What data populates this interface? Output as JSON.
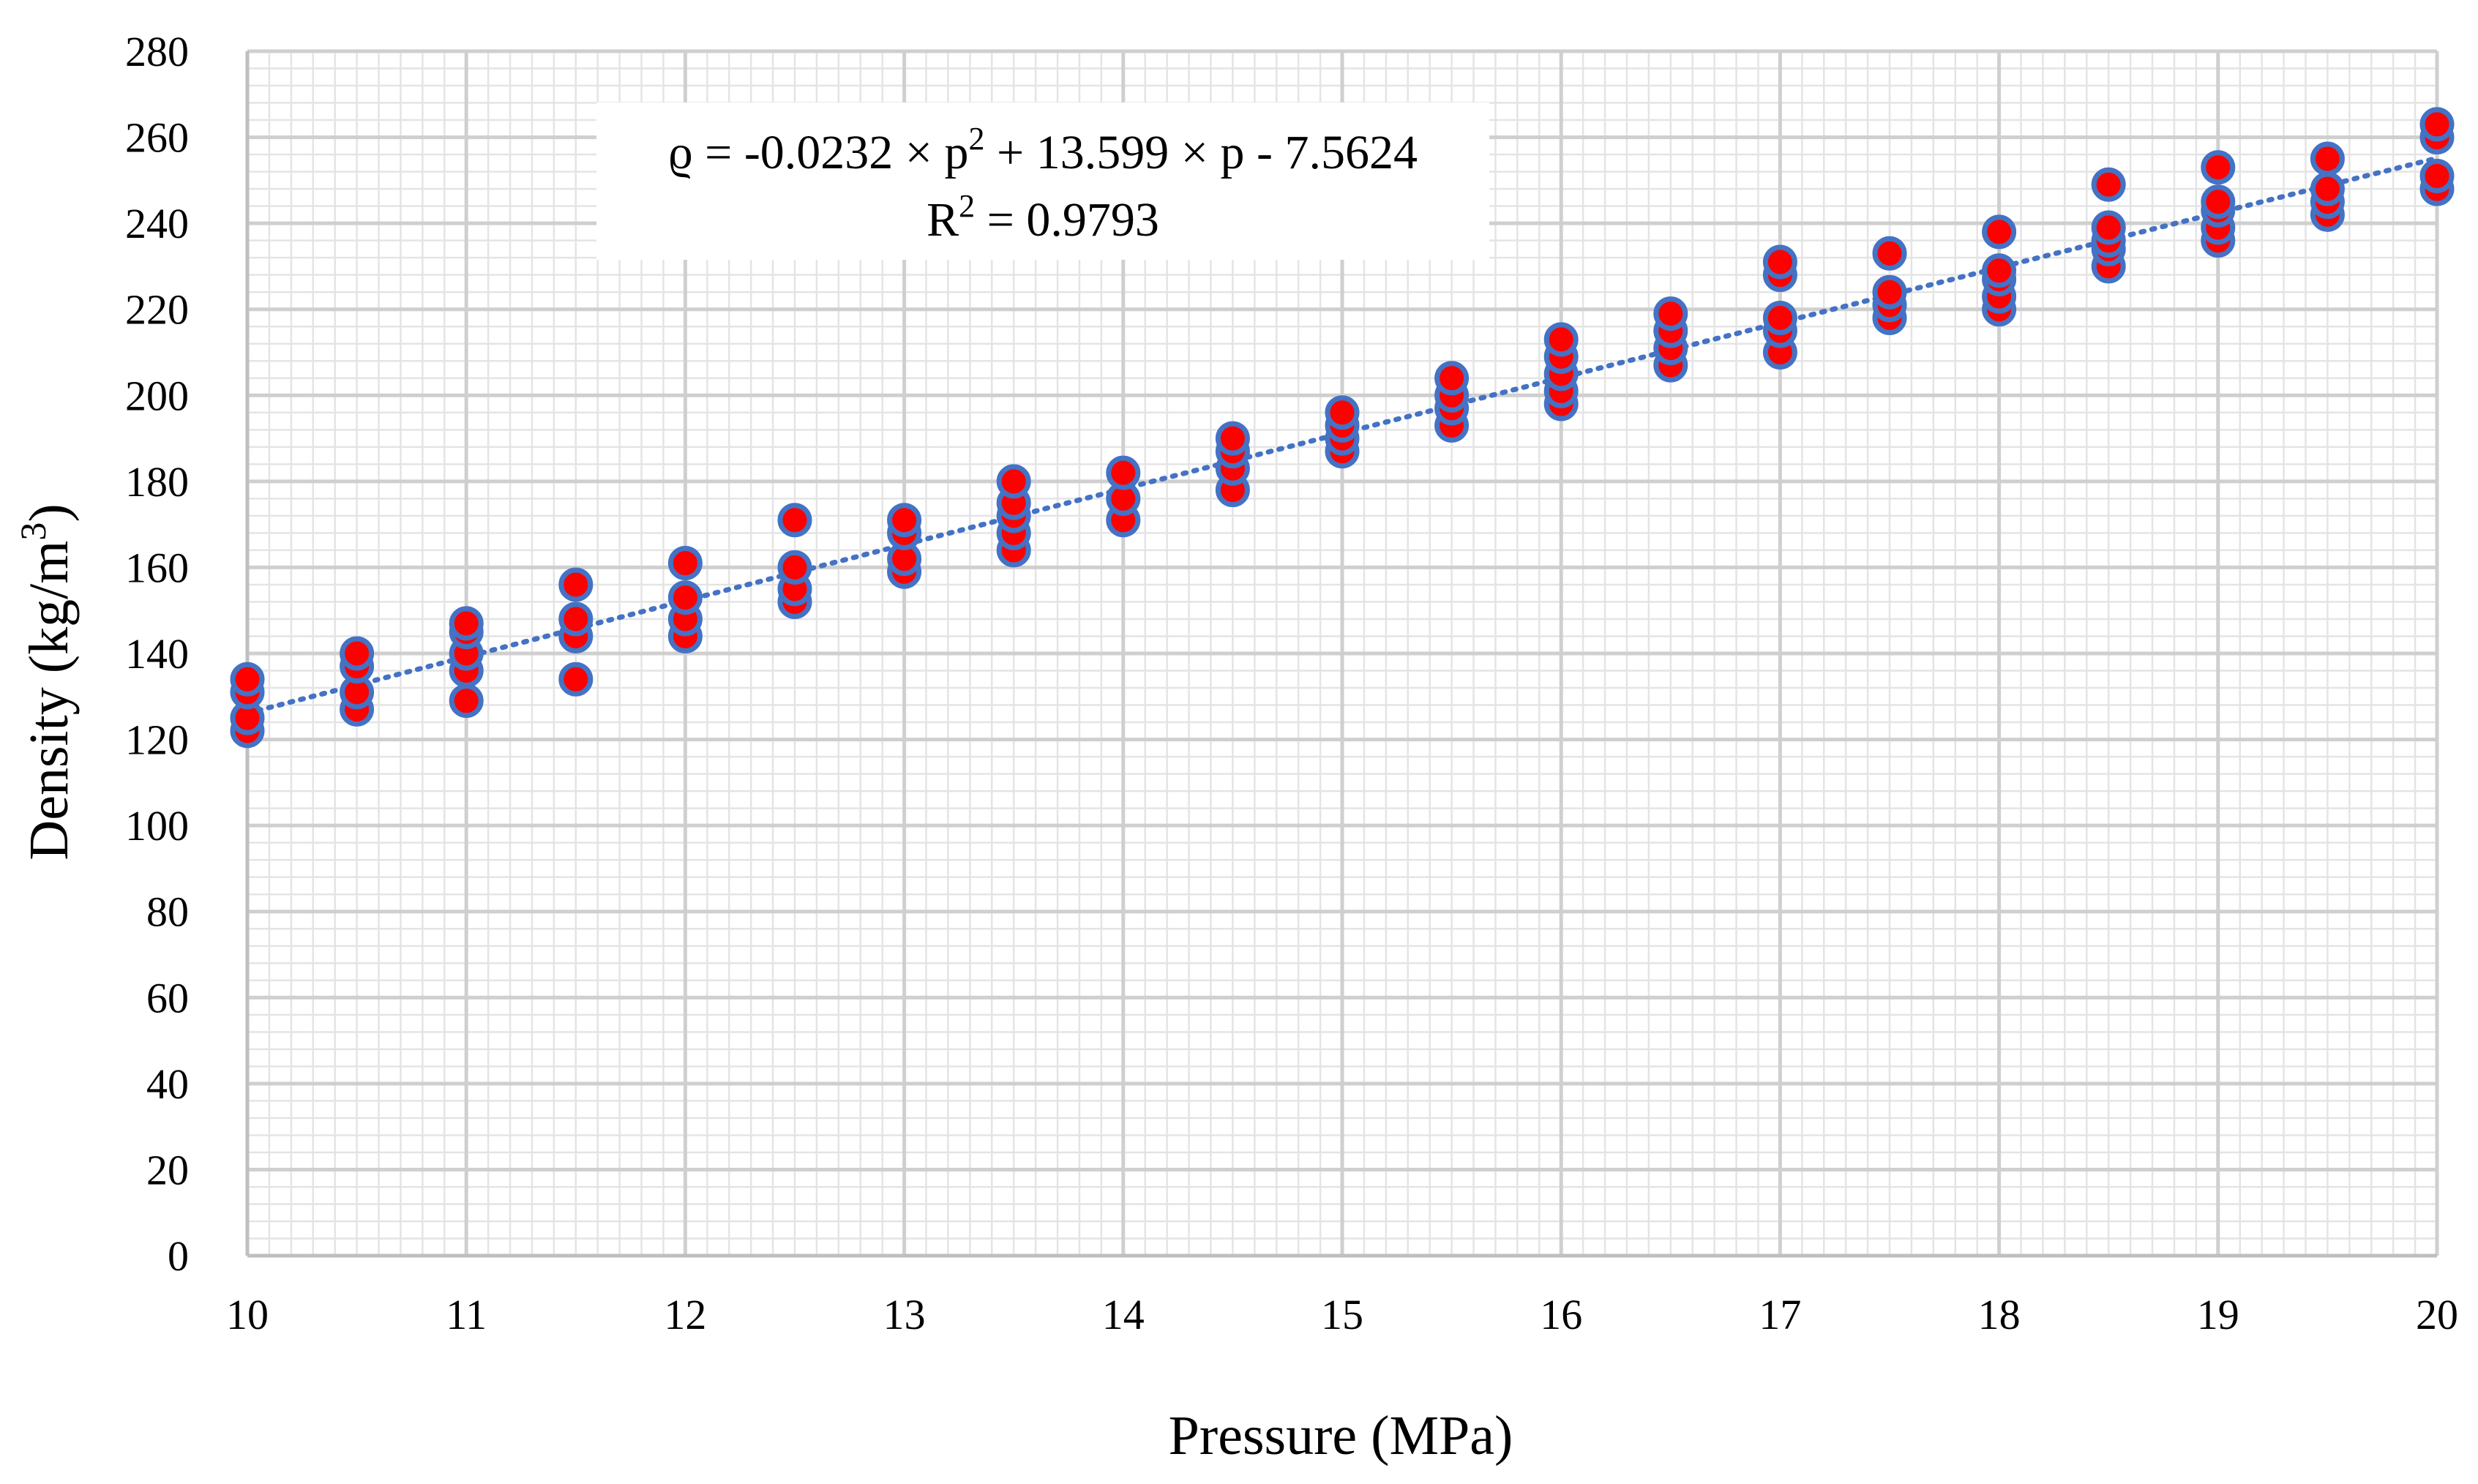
{
  "chart_data": {
    "type": "scatter",
    "title": "",
    "xlabel": "Pressure (MPa)",
    "ylabel": {
      "prefix": "Density (kg/m",
      "sup": "3",
      "suffix": ")"
    },
    "xlim": [
      10,
      20
    ],
    "ylim": [
      0,
      280
    ],
    "xticks": [
      10,
      11,
      12,
      13,
      14,
      15,
      16,
      17,
      18,
      19,
      20
    ],
    "yticks": [
      0,
      20,
      40,
      60,
      80,
      100,
      120,
      140,
      160,
      180,
      200,
      220,
      240,
      260,
      280
    ],
    "grid": true,
    "marker_fill": "#ff0000",
    "marker_edge": "#4472c4",
    "trendline_color": "#4472c4",
    "trendline": {
      "type": "polynomial",
      "a": -0.0232,
      "b": 13.599,
      "c": -7.5624,
      "equation": {
        "part1": "ϱ = -0.0232 × p",
        "sup1": "2",
        "part2": " + 13.599 × p - 7.5624"
      },
      "r2": {
        "prefix": "R",
        "sup": "2",
        "suffix": " = 0.9793"
      }
    },
    "series": [
      {
        "x": 10,
        "y": [
          122,
          125,
          131,
          134
        ]
      },
      {
        "x": 10.5,
        "y": [
          127,
          131,
          137,
          140
        ]
      },
      {
        "x": 11,
        "y": [
          129,
          136,
          140,
          145,
          147
        ]
      },
      {
        "x": 11.5,
        "y": [
          134,
          144,
          148,
          156
        ]
      },
      {
        "x": 12,
        "y": [
          144,
          148,
          153,
          161
        ]
      },
      {
        "x": 12.5,
        "y": [
          152,
          155,
          160,
          171
        ]
      },
      {
        "x": 13,
        "y": [
          159,
          162,
          168,
          171
        ]
      },
      {
        "x": 13.5,
        "y": [
          164,
          168,
          172,
          175,
          180
        ]
      },
      {
        "x": 14,
        "y": [
          171,
          176,
          182
        ]
      },
      {
        "x": 14.5,
        "y": [
          178,
          183,
          187,
          190
        ]
      },
      {
        "x": 15,
        "y": [
          187,
          190,
          193,
          196
        ]
      },
      {
        "x": 15.5,
        "y": [
          193,
          197,
          200,
          204
        ]
      },
      {
        "x": 16,
        "y": [
          198,
          201,
          205,
          209,
          213
        ]
      },
      {
        "x": 16.5,
        "y": [
          207,
          211,
          215,
          219
        ]
      },
      {
        "x": 17,
        "y": [
          210,
          215,
          218,
          228,
          231
        ]
      },
      {
        "x": 17.5,
        "y": [
          218,
          221,
          224,
          233
        ]
      },
      {
        "x": 18,
        "y": [
          220,
          223,
          227,
          229,
          238
        ]
      },
      {
        "x": 18.5,
        "y": [
          230,
          234,
          236,
          239,
          249
        ]
      },
      {
        "x": 19,
        "y": [
          236,
          239,
          243,
          245,
          253
        ]
      },
      {
        "x": 19.5,
        "y": [
          242,
          245,
          248,
          255
        ]
      },
      {
        "x": 20,
        "y": [
          248,
          251,
          260,
          263
        ]
      }
    ]
  }
}
